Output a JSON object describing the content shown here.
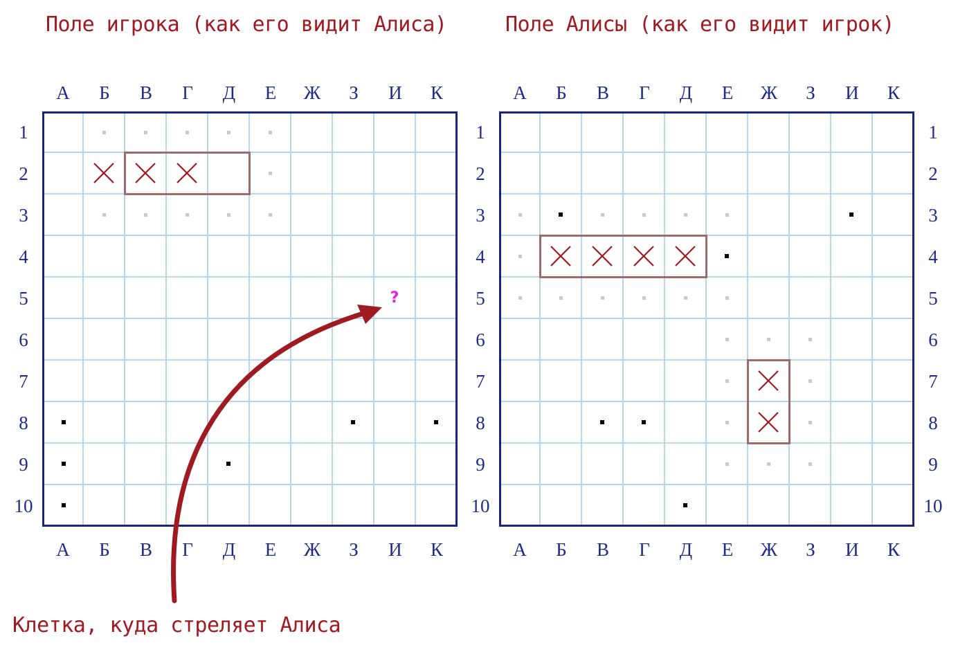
{
  "titles": {
    "left": "Поле игрока (как его видит Алиса)",
    "right": "Поле Алисы (как его видит игрок)"
  },
  "caption": "Клетка, куда стреляет Алиса",
  "columns": [
    "А",
    "Б",
    "В",
    "Г",
    "Д",
    "Е",
    "Ж",
    "З",
    "И",
    "К"
  ],
  "rows": [
    "1",
    "2",
    "3",
    "4",
    "5",
    "6",
    "7",
    "8",
    "9",
    "10"
  ],
  "colors": {
    "accent": "#a01a22",
    "border": "#1a237e",
    "grid": "#b8d6ea",
    "ship_outline": "#9e6b6b",
    "target": "#e61fe6"
  },
  "icons": {
    "hit": "cross-icon",
    "miss": "dot-icon",
    "blocked": "gray-dot-icon",
    "target": "question-mark-icon"
  },
  "target_mark": "?",
  "boards": {
    "left": {
      "hits": [
        [
          1,
          1
        ],
        [
          1,
          2
        ],
        [
          1,
          3
        ]
      ],
      "misses": [
        [
          7,
          0
        ],
        [
          7,
          7
        ],
        [
          7,
          9
        ],
        [
          8,
          0
        ],
        [
          8,
          4
        ],
        [
          9,
          0
        ]
      ],
      "blocked": [
        [
          0,
          1
        ],
        [
          0,
          2
        ],
        [
          0,
          3
        ],
        [
          0,
          4
        ],
        [
          0,
          5
        ],
        [
          1,
          1
        ],
        [
          1,
          5
        ],
        [
          2,
          1
        ],
        [
          2,
          2
        ],
        [
          2,
          3
        ],
        [
          2,
          4
        ],
        [
          2,
          5
        ]
      ],
      "target": [
        4,
        8
      ],
      "ships": [
        {
          "row": 1,
          "col": 2,
          "len": 3,
          "dir": "h"
        }
      ]
    },
    "right": {
      "hits": [
        [
          3,
          1
        ],
        [
          3,
          2
        ],
        [
          3,
          3
        ],
        [
          3,
          4
        ],
        [
          6,
          6
        ],
        [
          7,
          6
        ]
      ],
      "misses": [
        [
          2,
          1
        ],
        [
          2,
          8
        ],
        [
          3,
          5
        ],
        [
          7,
          2
        ],
        [
          7,
          3
        ],
        [
          9,
          4
        ]
      ],
      "blocked": [
        [
          2,
          0
        ],
        [
          2,
          2
        ],
        [
          2,
          3
        ],
        [
          2,
          4
        ],
        [
          2,
          5
        ],
        [
          3,
          0
        ],
        [
          4,
          0
        ],
        [
          4,
          1
        ],
        [
          4,
          2
        ],
        [
          4,
          3
        ],
        [
          4,
          4
        ],
        [
          4,
          5
        ],
        [
          5,
          5
        ],
        [
          5,
          6
        ],
        [
          5,
          7
        ],
        [
          6,
          5
        ],
        [
          6,
          7
        ],
        [
          7,
          5
        ],
        [
          7,
          7
        ],
        [
          8,
          5
        ],
        [
          8,
          6
        ],
        [
          8,
          7
        ]
      ],
      "ships": [
        {
          "row": 3,
          "col": 1,
          "len": 4,
          "dir": "h"
        },
        {
          "row": 6,
          "col": 6,
          "len": 2,
          "dir": "v"
        }
      ]
    }
  }
}
